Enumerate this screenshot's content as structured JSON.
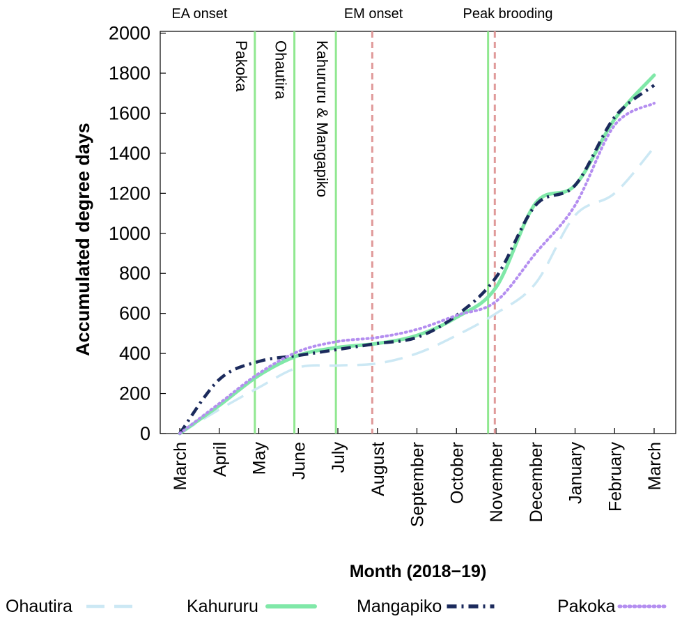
{
  "chart_data": {
    "type": "line",
    "xlabel": "Month (2018−19)",
    "ylabel": "Accumulated degree days",
    "categories": [
      "March",
      "April",
      "May",
      "June",
      "July",
      "August",
      "September",
      "October",
      "November",
      "December",
      "January",
      "February",
      "March"
    ],
    "ylim": [
      0,
      2000
    ],
    "yticks": [
      0,
      200,
      400,
      600,
      800,
      1000,
      1200,
      1400,
      1600,
      1800,
      2000
    ],
    "grid": false,
    "legend_position": "bottom",
    "series": [
      {
        "name": "Ohautira",
        "color": "#cce8f4",
        "dash": "long-dash",
        "x": [
          0,
          1,
          2,
          3,
          4,
          5,
          6,
          7,
          8,
          9,
          10,
          11,
          12
        ],
        "values": [
          0,
          120,
          230,
          330,
          340,
          350,
          400,
          490,
          600,
          750,
          1090,
          1200,
          1430
        ]
      },
      {
        "name": "Kahururu",
        "color": "#80e8a8",
        "dash": "solid",
        "x": [
          0,
          1,
          2,
          3,
          4,
          5,
          6,
          7,
          8,
          9,
          10,
          11,
          12
        ],
        "values": [
          0,
          140,
          290,
          390,
          430,
          450,
          490,
          580,
          730,
          1150,
          1240,
          1570,
          1790
        ]
      },
      {
        "name": "Mangapiko",
        "color": "#1b2a5c",
        "dash": "dash-dot",
        "x": [
          0,
          1,
          2,
          3,
          4,
          5,
          6,
          7,
          8,
          9,
          10,
          11,
          12
        ],
        "values": [
          0,
          270,
          360,
          390,
          420,
          450,
          480,
          590,
          780,
          1140,
          1240,
          1580,
          1740
        ]
      },
      {
        "name": "Pakoka",
        "color": "#b48ef0",
        "dash": "dotted",
        "x": [
          0,
          1,
          2,
          3,
          4,
          5,
          6,
          7,
          8,
          9,
          10,
          11,
          12
        ],
        "values": [
          0,
          150,
          300,
          410,
          460,
          480,
          520,
          590,
          660,
          900,
          1140,
          1540,
          1650
        ]
      }
    ],
    "vertical_lines": [
      {
        "x": 1.9,
        "color": "#90e890",
        "style": "solid",
        "label": "Pakoka"
      },
      {
        "x": 2.9,
        "color": "#90e890",
        "style": "solid",
        "label": "Ohautira"
      },
      {
        "x": 3.95,
        "color": "#90e890",
        "style": "solid",
        "label": "Kahururu & Mangapiko"
      },
      {
        "x": 4.87,
        "color": "#e09a9a",
        "style": "dashed",
        "label": ""
      },
      {
        "x": 7.8,
        "color": "#90e890",
        "style": "solid",
        "label": ""
      },
      {
        "x": 7.97,
        "color": "#e09a9a",
        "style": "dashed",
        "label": ""
      }
    ],
    "top_annotations": [
      {
        "text": "EA onset",
        "x": 0.5
      },
      {
        "text": "EM onset",
        "x": 4.9
      },
      {
        "text": "Peak brooding",
        "x": 8.3
      }
    ]
  }
}
